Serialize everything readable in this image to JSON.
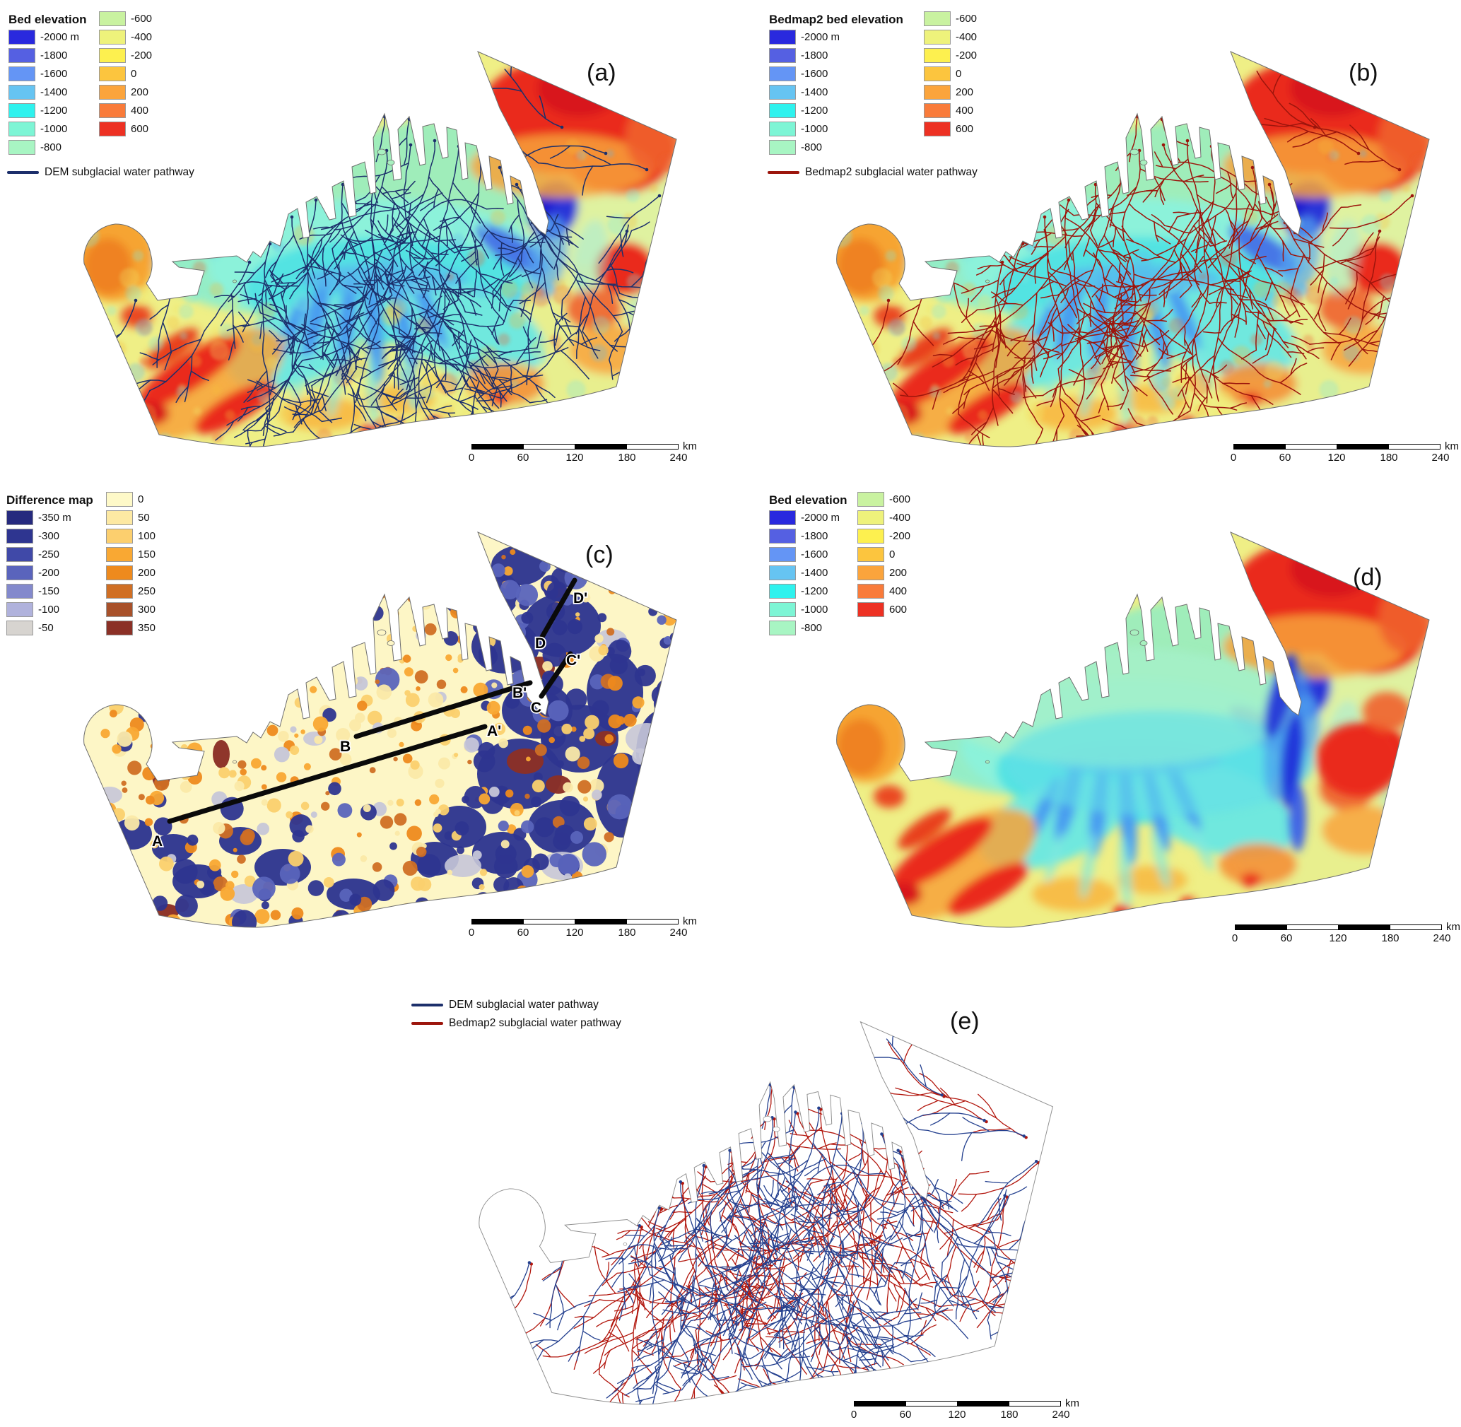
{
  "panels": {
    "a": {
      "letter": "(a)"
    },
    "b": {
      "letter": "(b)"
    },
    "c": {
      "letter": "(c)"
    },
    "d": {
      "letter": "(d)"
    },
    "e": {
      "letter": "(e)"
    }
  },
  "titles": {
    "bed": "Bed elevation",
    "bedmap2": "Bedmap2 bed elevation",
    "difference": "Difference map"
  },
  "elevation_scale": {
    "col1": [
      {
        "label": "-2000 m",
        "color": "#2929de"
      },
      {
        "label": "-1800",
        "color": "#5560e2"
      },
      {
        "label": "-1600",
        "color": "#6495f5"
      },
      {
        "label": "-1400",
        "color": "#66c4f2"
      },
      {
        "label": "-1200",
        "color": "#2ef2ee"
      },
      {
        "label": "-1000",
        "color": "#7df5d5"
      },
      {
        "label": "-800",
        "color": "#a8f5c3"
      }
    ],
    "col2": [
      {
        "label": "-600",
        "color": "#c9f2a0"
      },
      {
        "label": "-400",
        "color": "#eef27b"
      },
      {
        "label": "-200",
        "color": "#fdf04f"
      },
      {
        "label": "0",
        "color": "#fcc53e"
      },
      {
        "label": "200",
        "color": "#fba43c"
      },
      {
        "label": "400",
        "color": "#f97b3a"
      },
      {
        "label": "600",
        "color": "#ed3123"
      }
    ]
  },
  "difference_scale": {
    "col1": [
      {
        "label": "-350 m",
        "color": "#262a7e"
      },
      {
        "label": "-300",
        "color": "#2e3590"
      },
      {
        "label": "-250",
        "color": "#4049a8"
      },
      {
        "label": "-200",
        "color": "#5a64bc"
      },
      {
        "label": "-150",
        "color": "#8389cc"
      },
      {
        "label": "-100",
        "color": "#b0b2dc"
      },
      {
        "label": "-50",
        "color": "#d7d4d0"
      }
    ],
    "col2": [
      {
        "label": "0",
        "color": "#fef9c8"
      },
      {
        "label": "50",
        "color": "#fde9a3"
      },
      {
        "label": "100",
        "color": "#fccf6e"
      },
      {
        "label": "150",
        "color": "#f9a833"
      },
      {
        "label": "200",
        "color": "#ee8a1d"
      },
      {
        "label": "250",
        "color": "#d06f24"
      },
      {
        "label": "300",
        "color": "#a8512a"
      },
      {
        "label": "350",
        "color": "#8b3026"
      }
    ]
  },
  "pathway_legend": {
    "dem": {
      "label": "DEM subglacial water pathway",
      "color": "#1c2f6b"
    },
    "bedmap2": {
      "label": "Bedmap2 subglacial water pathway",
      "color": "#9c150c"
    }
  },
  "scalebar": {
    "labels": [
      "0",
      "60",
      "120",
      "180",
      "240"
    ],
    "unit": "km"
  },
  "profile_labels": {
    "A": "A",
    "A2": "A'",
    "B": "B",
    "B2": "B'",
    "C": "C",
    "C2": "C'",
    "D": "D",
    "D2": "D'"
  }
}
